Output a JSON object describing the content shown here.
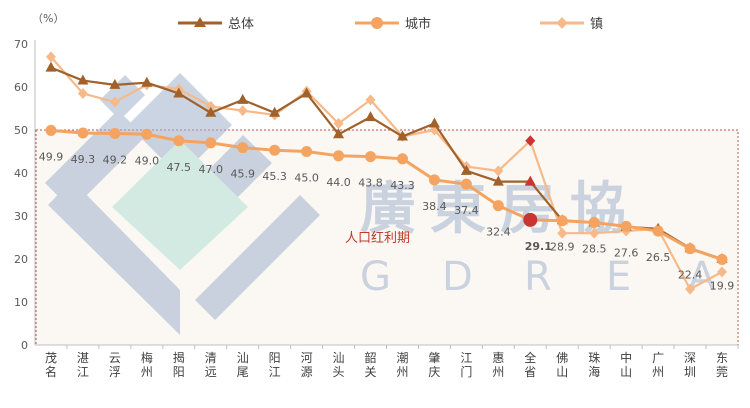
{
  "chart_data": {
    "type": "line",
    "unit_label": "（%）",
    "categories": [
      "茂名",
      "湛江",
      "云浮",
      "梅州",
      "揭阳",
      "清远",
      "汕尾",
      "阳江",
      "河源",
      "汕头",
      "韶关",
      "潮州",
      "肇庆",
      "江门",
      "惠州",
      "全省",
      "佛山",
      "珠海",
      "中山",
      "广州",
      "深圳",
      "东莞"
    ],
    "ylim": [
      0,
      70
    ],
    "yticks": [
      0,
      10,
      20,
      30,
      40,
      50,
      60,
      70
    ],
    "series": [
      {
        "name": "总体",
        "color": "#A0612A",
        "marker": "triangle",
        "values": [
          64.5,
          61.5,
          60.5,
          61.0,
          58.5,
          54.0,
          57.0,
          54.0,
          58.5,
          49.0,
          53.0,
          48.5,
          51.5,
          40.5,
          38.0,
          38.0,
          29.0,
          28.5,
          27.5,
          27.0,
          22.5,
          20.0
        ]
      },
      {
        "name": "城市",
        "color": "#F4A460",
        "marker": "circle",
        "values": [
          49.9,
          49.3,
          49.2,
          49.0,
          47.5,
          47.0,
          45.9,
          45.3,
          45.0,
          44.0,
          43.8,
          43.3,
          38.4,
          37.4,
          32.4,
          29.1,
          28.9,
          28.5,
          27.6,
          26.5,
          22.4,
          19.9
        ]
      },
      {
        "name": "镇",
        "color": "#F6B98A",
        "marker": "diamond",
        "values": [
          67.0,
          58.5,
          56.5,
          60.5,
          59.5,
          55.5,
          54.5,
          53.5,
          59.0,
          51.5,
          57.0,
          48.5,
          50.0,
          41.5,
          40.5,
          47.5,
          26.0,
          26.0,
          26.5,
          27.0,
          13.0,
          17.0
        ]
      }
    ],
    "data_labels": {
      "series": "城市",
      "values": [
        "49.9",
        "49.3",
        "49.2",
        "49.0",
        "47.5",
        "47.0",
        "45.9",
        "45.3",
        "45.0",
        "44.0",
        "43.8",
        "43.3",
        "38.4",
        "37.4",
        "32.4",
        "29.1",
        "28.9",
        "28.5",
        "27.6",
        "26.5",
        "22.4",
        "19.9"
      ]
    },
    "highlight_category": "全省",
    "highlight_color": "#CC3333",
    "reference_line": 50,
    "annotation": "人口红利期",
    "grid": false,
    "legend_position": "top"
  },
  "watermark": {
    "cn": "廣東房協",
    "en": [
      "G",
      "D",
      "R",
      "E",
      "A"
    ]
  }
}
